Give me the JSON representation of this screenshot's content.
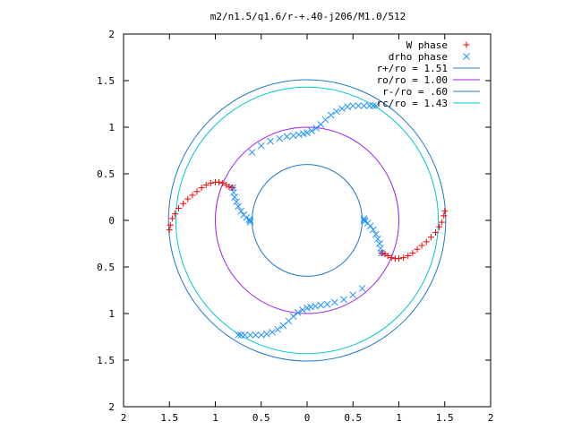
{
  "chart_data": {
    "type": "scatter",
    "title": "m2/n1.5/q1.6/r-+.40-j206/M1.0/512",
    "xlabel": "",
    "ylabel": "",
    "xlim": [
      -2,
      2
    ],
    "ylim": [
      -2,
      2
    ],
    "xticks": [
      {
        "value": -2,
        "label": "2"
      },
      {
        "value": -1.5,
        "label": "1.5"
      },
      {
        "value": -1,
        "label": "1"
      },
      {
        "value": -0.5,
        "label": "0.5"
      },
      {
        "value": 0,
        "label": "0"
      },
      {
        "value": 0.5,
        "label": "0.5"
      },
      {
        "value": 1,
        "label": "1"
      },
      {
        "value": 1.5,
        "label": "1.5"
      },
      {
        "value": 2,
        "label": "2"
      }
    ],
    "yticks": [
      {
        "value": 2,
        "label": "2"
      },
      {
        "value": 1.5,
        "label": "1.5"
      },
      {
        "value": 1,
        "label": "1"
      },
      {
        "value": 0.5,
        "label": "0.5"
      },
      {
        "value": 0,
        "label": "0"
      },
      {
        "value": -0.5,
        "label": "0.5"
      },
      {
        "value": -1,
        "label": "1"
      },
      {
        "value": -1.5,
        "label": "1.5"
      },
      {
        "value": -2,
        "label": "2"
      }
    ],
    "grid": false,
    "legend_position": "top-right",
    "series": [
      {
        "name": "W phase",
        "marker": "plus",
        "color": "#ff0000",
        "x": [
          -1.5,
          -1.49,
          -1.47,
          -1.44,
          -1.4,
          -1.35,
          -1.3,
          -1.25,
          -1.2,
          -1.15,
          -1.1,
          -1.05,
          -1.0,
          -0.96,
          -0.92,
          -0.88,
          -0.85,
          -0.82,
          -0.81,
          1.5,
          1.49,
          1.47,
          1.44,
          1.4,
          1.35,
          1.3,
          1.25,
          1.2,
          1.15,
          1.1,
          1.05,
          1.0,
          0.96,
          0.92,
          0.88,
          0.85,
          0.82,
          0.81
        ],
        "y": [
          -0.1,
          -0.05,
          0.02,
          0.07,
          0.13,
          0.18,
          0.23,
          0.27,
          0.31,
          0.35,
          0.38,
          0.4,
          0.41,
          0.41,
          0.4,
          0.38,
          0.36,
          0.35,
          0.35,
          0.1,
          0.05,
          -0.02,
          -0.07,
          -0.13,
          -0.18,
          -0.23,
          -0.27,
          -0.31,
          -0.35,
          -0.38,
          -0.4,
          -0.41,
          -0.41,
          -0.4,
          -0.38,
          -0.36,
          -0.35,
          -0.35
        ]
      },
      {
        "name": "drho phase",
        "marker": "x",
        "color": "#1e90ff",
        "x": [
          -0.81,
          -0.8,
          -0.79,
          -0.77,
          -0.75,
          -0.72,
          -0.69,
          -0.66,
          -0.63,
          -0.62,
          -0.62,
          -0.6,
          -0.5,
          -0.4,
          -0.3,
          -0.22,
          -0.15,
          -0.09,
          -0.04,
          0.0,
          0.05,
          0.1,
          0.15,
          0.2,
          0.26,
          0.32,
          0.38,
          0.44,
          0.5,
          0.56,
          0.62,
          0.68,
          0.72,
          0.75,
          0.81,
          0.8,
          0.79,
          0.77,
          0.75,
          0.72,
          0.69,
          0.66,
          0.63,
          0.62,
          0.62,
          0.6,
          0.5,
          0.4,
          0.3,
          0.22,
          0.15,
          0.09,
          0.04,
          0.0,
          -0.05,
          -0.1,
          -0.15,
          -0.2,
          -0.26,
          -0.32,
          -0.38,
          -0.44,
          -0.5,
          -0.56,
          -0.62,
          -0.68,
          -0.72,
          -0.75
        ],
        "y": [
          0.35,
          0.3,
          0.25,
          0.2,
          0.15,
          0.1,
          0.06,
          0.03,
          0.01,
          0.0,
          -0.02,
          0.73,
          0.8,
          0.85,
          0.88,
          0.9,
          0.91,
          0.92,
          0.93,
          0.94,
          0.96,
          0.99,
          1.03,
          1.08,
          1.13,
          1.17,
          1.2,
          1.22,
          1.23,
          1.23,
          1.23,
          1.23,
          1.23,
          1.23,
          -0.35,
          -0.3,
          -0.25,
          -0.2,
          -0.15,
          -0.1,
          -0.06,
          -0.03,
          -0.01,
          0.0,
          0.02,
          -0.73,
          -0.8,
          -0.85,
          -0.88,
          -0.9,
          -0.91,
          -0.92,
          -0.93,
          -0.94,
          -0.96,
          -0.99,
          -1.03,
          -1.08,
          -1.13,
          -1.17,
          -1.2,
          -1.22,
          -1.23,
          -1.23,
          -1.23,
          -1.23,
          -1.23,
          -1.23
        ]
      },
      {
        "name": "r+/ro = 1.51",
        "type": "circle",
        "radius": 1.51,
        "color": "#1f78c8"
      },
      {
        "name": "ro/ro = 1.00",
        "type": "circle",
        "radius": 1.0,
        "color": "#a020f0"
      },
      {
        "name": "r-/ro = .60",
        "type": "circle",
        "radius": 0.6,
        "color": "#1f78c8"
      },
      {
        "name": "rc/ro = 1.43",
        "type": "circle",
        "radius": 1.43,
        "color": "#00c8d2"
      }
    ]
  }
}
